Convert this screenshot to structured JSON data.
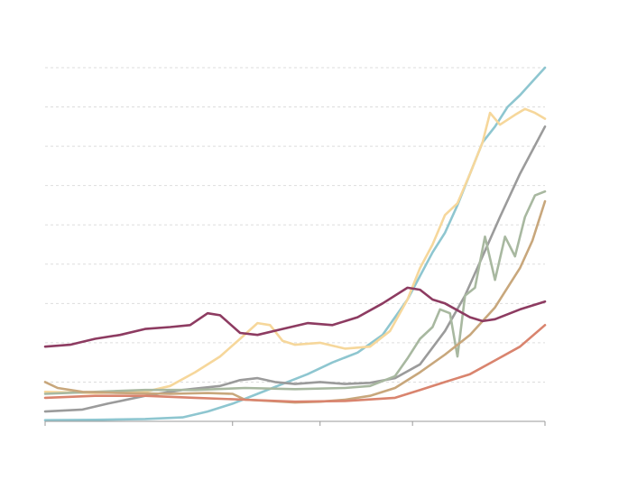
{
  "chart_data": {
    "type": "line",
    "title": "",
    "xlabel": "",
    "ylabel": "",
    "grid": true,
    "legend": "none",
    "x_ticks": [
      0,
      75,
      110,
      147,
      200
    ],
    "xlim": [
      0,
      200
    ],
    "ylim": [
      0,
      9
    ],
    "y_gridlines": [
      1,
      2,
      3,
      4,
      5,
      6,
      7,
      8,
      9
    ],
    "series": [
      {
        "color": "#8ec6d0",
        "points": [
          [
            0,
            0.03
          ],
          [
            20,
            0.04
          ],
          [
            40,
            0.06
          ],
          [
            55,
            0.1
          ],
          [
            65,
            0.25
          ],
          [
            75,
            0.45
          ],
          [
            85,
            0.7
          ],
          [
            95,
            0.95
          ],
          [
            105,
            1.2
          ],
          [
            115,
            1.5
          ],
          [
            125,
            1.75
          ],
          [
            135,
            2.2
          ],
          [
            145,
            3.1
          ],
          [
            155,
            4.3
          ],
          [
            160,
            4.8
          ],
          [
            165,
            5.5
          ],
          [
            170,
            6.3
          ],
          [
            175,
            7.1
          ],
          [
            180,
            7.5
          ],
          [
            185,
            8.0
          ],
          [
            190,
            8.3
          ],
          [
            195,
            8.65
          ],
          [
            200,
            9.0
          ]
        ]
      },
      {
        "color": "#f6d79b",
        "points": [
          [
            0,
            0.75
          ],
          [
            20,
            0.72
          ],
          [
            40,
            0.75
          ],
          [
            50,
            0.9
          ],
          [
            60,
            1.25
          ],
          [
            70,
            1.65
          ],
          [
            78,
            2.1
          ],
          [
            85,
            2.5
          ],
          [
            90,
            2.45
          ],
          [
            95,
            2.05
          ],
          [
            100,
            1.95
          ],
          [
            110,
            2.0
          ],
          [
            120,
            1.85
          ],
          [
            130,
            1.9
          ],
          [
            138,
            2.3
          ],
          [
            145,
            3.1
          ],
          [
            150,
            3.9
          ],
          [
            155,
            4.5
          ],
          [
            160,
            5.25
          ],
          [
            165,
            5.55
          ],
          [
            170,
            6.3
          ],
          [
            175,
            7.1
          ],
          [
            178,
            7.85
          ],
          [
            182,
            7.55
          ],
          [
            188,
            7.8
          ],
          [
            192,
            7.95
          ],
          [
            196,
            7.85
          ],
          [
            200,
            7.7
          ]
        ]
      },
      {
        "color": "#9b9b9b",
        "points": [
          [
            0,
            0.25
          ],
          [
            15,
            0.3
          ],
          [
            25,
            0.45
          ],
          [
            40,
            0.65
          ],
          [
            55,
            0.8
          ],
          [
            70,
            0.9
          ],
          [
            78,
            1.05
          ],
          [
            85,
            1.1
          ],
          [
            92,
            1.0
          ],
          [
            100,
            0.95
          ],
          [
            110,
            1.0
          ],
          [
            120,
            0.95
          ],
          [
            130,
            0.98
          ],
          [
            140,
            1.1
          ],
          [
            150,
            1.45
          ],
          [
            160,
            2.3
          ],
          [
            168,
            3.2
          ],
          [
            175,
            4.2
          ],
          [
            182,
            5.2
          ],
          [
            190,
            6.3
          ],
          [
            200,
            7.5
          ]
        ]
      },
      {
        "color": "#a8b8a0",
        "points": [
          [
            0,
            0.7
          ],
          [
            20,
            0.75
          ],
          [
            40,
            0.8
          ],
          [
            60,
            0.8
          ],
          [
            80,
            0.85
          ],
          [
            100,
            0.82
          ],
          [
            120,
            0.85
          ],
          [
            130,
            0.9
          ],
          [
            140,
            1.15
          ],
          [
            145,
            1.6
          ],
          [
            150,
            2.1
          ],
          [
            155,
            2.4
          ],
          [
            158,
            2.85
          ],
          [
            162,
            2.75
          ],
          [
            165,
            1.65
          ],
          [
            168,
            3.2
          ],
          [
            172,
            3.4
          ],
          [
            176,
            4.7
          ],
          [
            180,
            3.6
          ],
          [
            184,
            4.7
          ],
          [
            188,
            4.2
          ],
          [
            192,
            5.2
          ],
          [
            196,
            5.75
          ],
          [
            200,
            5.85
          ]
        ]
      },
      {
        "color": "#c8a77c",
        "points": [
          [
            0,
            1.0
          ],
          [
            5,
            0.85
          ],
          [
            15,
            0.75
          ],
          [
            30,
            0.72
          ],
          [
            50,
            0.7
          ],
          [
            65,
            0.72
          ],
          [
            75,
            0.7
          ],
          [
            80,
            0.55
          ],
          [
            90,
            0.52
          ],
          [
            100,
            0.48
          ],
          [
            110,
            0.5
          ],
          [
            120,
            0.55
          ],
          [
            130,
            0.65
          ],
          [
            140,
            0.85
          ],
          [
            150,
            1.25
          ],
          [
            160,
            1.7
          ],
          [
            170,
            2.2
          ],
          [
            180,
            2.9
          ],
          [
            190,
            3.9
          ],
          [
            195,
            4.6
          ],
          [
            200,
            5.6
          ]
        ]
      },
      {
        "color": "#d9846e",
        "points": [
          [
            0,
            0.6
          ],
          [
            20,
            0.65
          ],
          [
            40,
            0.65
          ],
          [
            60,
            0.6
          ],
          [
            80,
            0.55
          ],
          [
            100,
            0.5
          ],
          [
            120,
            0.52
          ],
          [
            140,
            0.6
          ],
          [
            150,
            0.8
          ],
          [
            160,
            1.0
          ],
          [
            170,
            1.2
          ],
          [
            180,
            1.55
          ],
          [
            190,
            1.9
          ],
          [
            200,
            2.45
          ]
        ]
      },
      {
        "color": "#8d3b61",
        "points": [
          [
            0,
            1.9
          ],
          [
            10,
            1.95
          ],
          [
            20,
            2.1
          ],
          [
            30,
            2.2
          ],
          [
            40,
            2.35
          ],
          [
            50,
            2.4
          ],
          [
            58,
            2.45
          ],
          [
            65,
            2.75
          ],
          [
            70,
            2.7
          ],
          [
            78,
            2.25
          ],
          [
            85,
            2.2
          ],
          [
            95,
            2.35
          ],
          [
            105,
            2.5
          ],
          [
            115,
            2.45
          ],
          [
            125,
            2.65
          ],
          [
            135,
            3.0
          ],
          [
            145,
            3.4
          ],
          [
            150,
            3.35
          ],
          [
            155,
            3.1
          ],
          [
            160,
            3.0
          ],
          [
            170,
            2.65
          ],
          [
            175,
            2.55
          ],
          [
            180,
            2.6
          ],
          [
            190,
            2.85
          ],
          [
            200,
            3.05
          ]
        ]
      }
    ]
  }
}
